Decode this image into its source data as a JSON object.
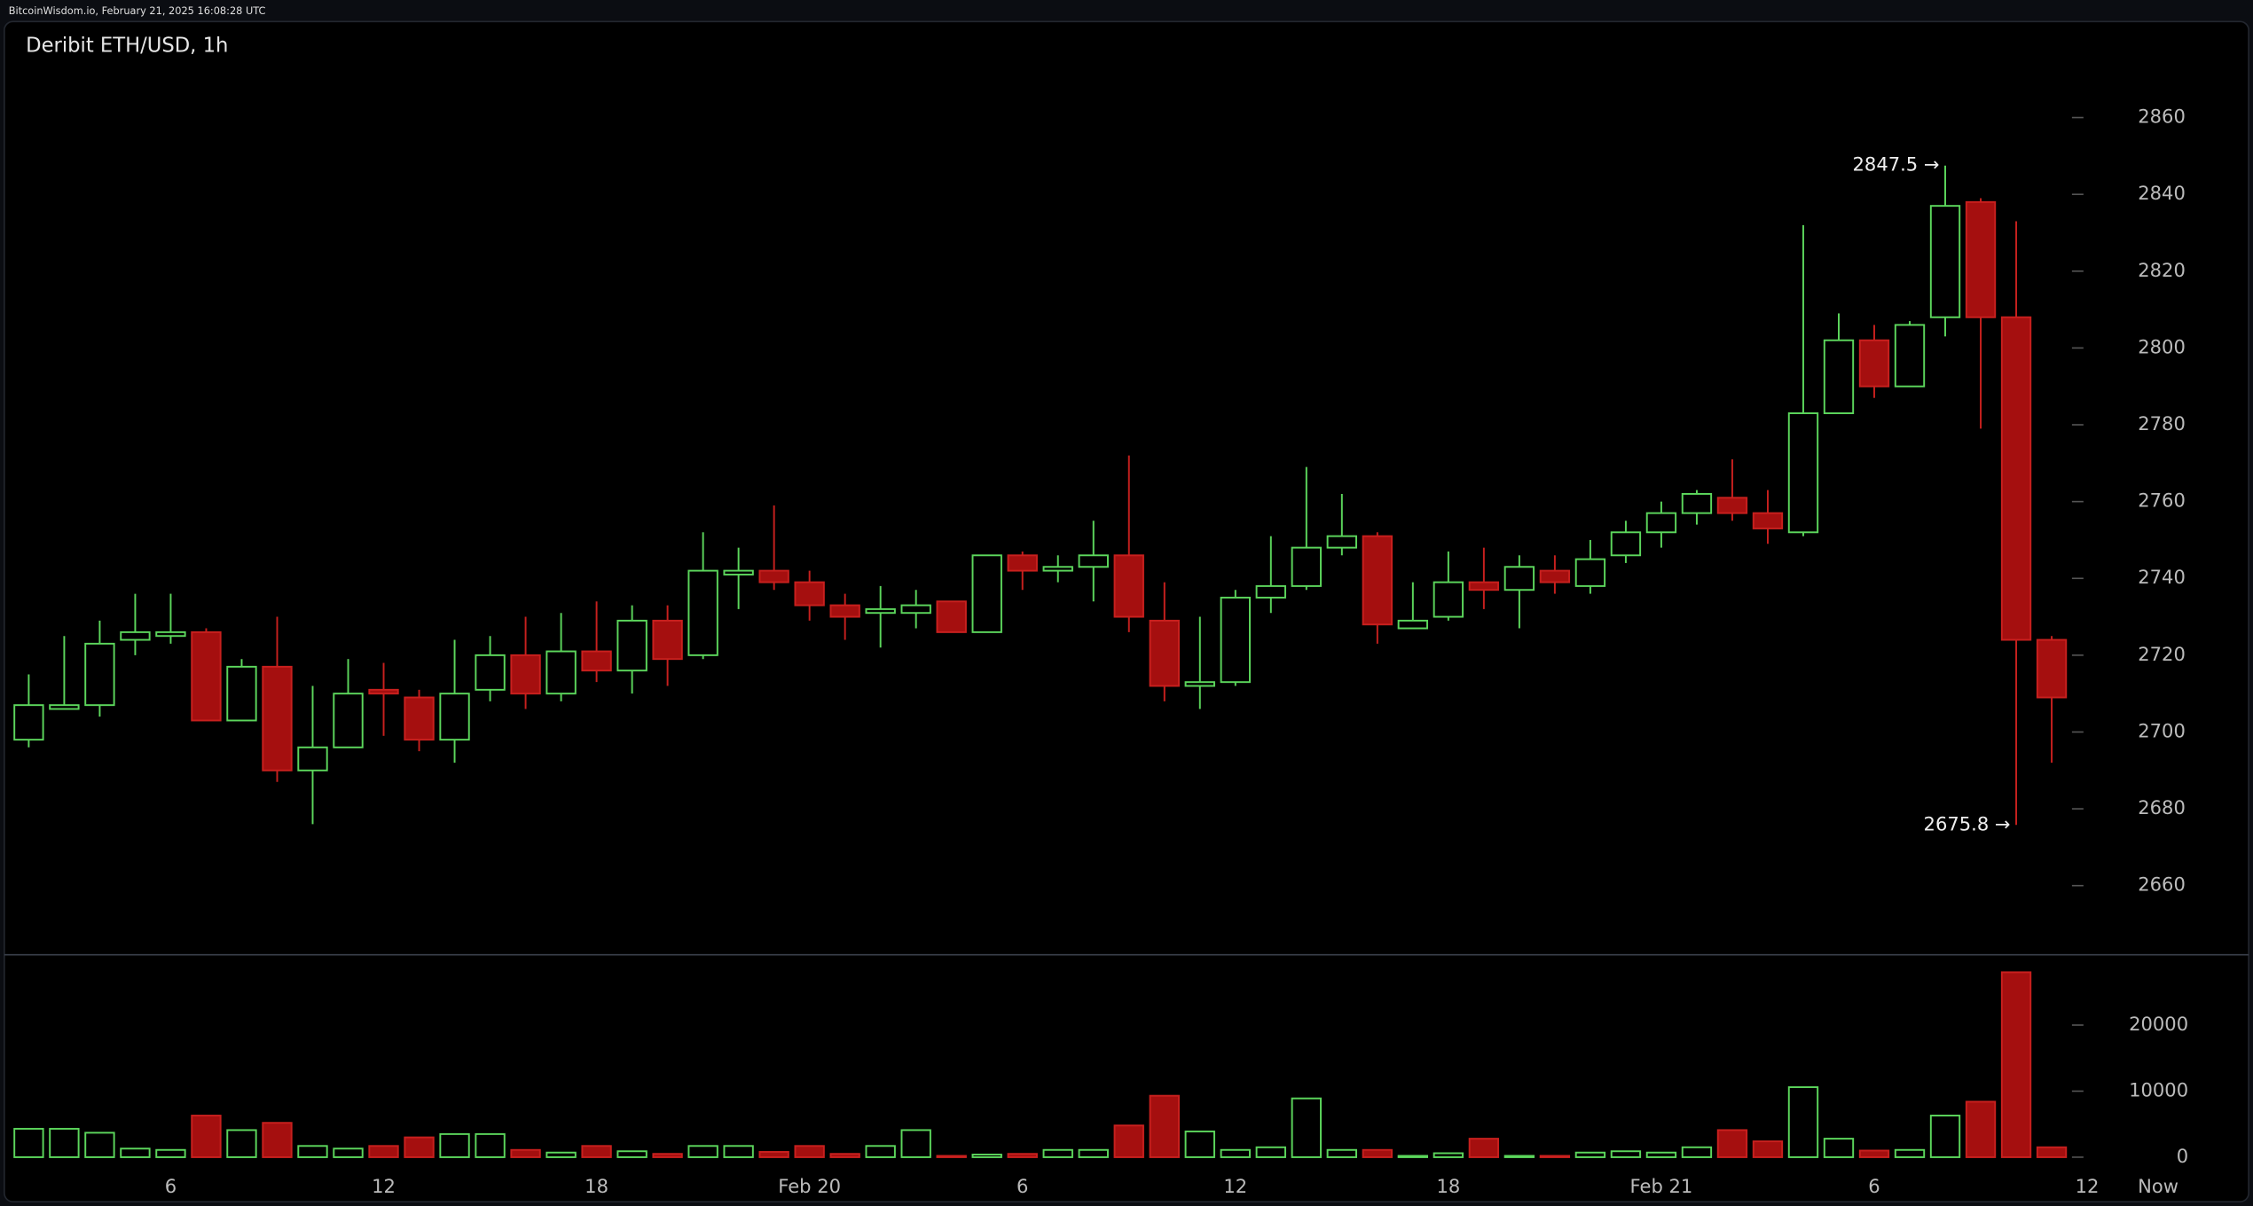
{
  "header": "BitcoinWisdom.io, February 21, 2025 16:08:28 UTC",
  "chart_data": {
    "type": "candlestick",
    "title": "Deribit ETH/USD, 1h",
    "categories": [
      null,
      null,
      null,
      null,
      "6",
      null,
      null,
      null,
      null,
      null,
      "12",
      null,
      null,
      null,
      null,
      null,
      "18",
      null,
      null,
      null,
      null,
      null,
      "Feb 20",
      null,
      null,
      null,
      null,
      null,
      "6",
      null,
      null,
      null,
      null,
      null,
      "12",
      null,
      null,
      null,
      null,
      null,
      "18",
      null,
      null,
      null,
      null,
      null,
      "Feb 21",
      null,
      null,
      null,
      null,
      null,
      "6",
      null,
      null,
      null,
      null,
      null,
      "12",
      null,
      "Now"
    ],
    "open": [
      2698,
      2706,
      2707,
      2724,
      2725,
      2726,
      2703,
      2717,
      2690,
      2696,
      2711,
      2709,
      2698,
      2711,
      2720,
      2710,
      2721,
      2716,
      2729,
      2720,
      2741,
      2742,
      2739,
      2733,
      2731,
      2731,
      2734,
      2726,
      2746,
      2742,
      2743,
      2746,
      2729,
      2712,
      2713,
      2735,
      2738,
      2748,
      2751,
      2727,
      2730,
      2739,
      2737,
      2742,
      2738,
      2746,
      2752,
      2757,
      2761,
      2757,
      2752,
      2783,
      2802,
      2790,
      2808,
      2838,
      2808,
      2724,
      null,
      null,
      null
    ],
    "high": [
      2715,
      2725,
      2729,
      2736,
      2736,
      2727,
      2719,
      2730,
      2712,
      2719,
      2718,
      2711,
      2724,
      2725,
      2730,
      2731,
      2734,
      2733,
      2733,
      2752,
      2748,
      2759,
      2742,
      2736,
      2738,
      2737,
      2734,
      2746,
      2747,
      2746,
      2755,
      2772,
      2739,
      2730,
      2737,
      2751,
      2769,
      2762,
      2752,
      2739,
      2747,
      2748,
      2746,
      2746,
      2750,
      2755,
      2760,
      2763,
      2771,
      2763,
      2832,
      2809,
      2806,
      2807,
      2847.5,
      2839,
      2833,
      2725,
      null,
      null,
      null
    ],
    "low": [
      2696,
      2706,
      2704,
      2720,
      2723,
      2703,
      2703,
      2687,
      2676,
      2696,
      2699,
      2695,
      2692,
      2708,
      2706,
      2708,
      2713,
      2710,
      2712,
      2719,
      2732,
      2737,
      2729,
      2724,
      2722,
      2727,
      2726,
      2726,
      2737,
      2739,
      2734,
      2726,
      2708,
      2706,
      2712,
      2731,
      2737,
      2746,
      2723,
      2727,
      2729,
      2732,
      2727,
      2736,
      2736,
      2744,
      2748,
      2754,
      2755,
      2749,
      2751,
      2783,
      2787,
      2790,
      2803,
      2779,
      2675.8,
      2692,
      null,
      null,
      null
    ],
    "close": [
      2707,
      2707,
      2723,
      2726,
      2726,
      2703,
      2717,
      2690,
      2696,
      2710,
      2710,
      2698,
      2710,
      2720,
      2710,
      2721,
      2716,
      2729,
      2719,
      2742,
      2742,
      2739,
      2733,
      2730,
      2732,
      2733,
      2726,
      2746,
      2742,
      2743,
      2746,
      2730,
      2712,
      2713,
      2735,
      2738,
      2748,
      2751,
      2728,
      2729,
      2739,
      2737,
      2743,
      2739,
      2745,
      2752,
      2757,
      2762,
      2757,
      2753,
      2783,
      2802,
      2790,
      2806,
      2837,
      2808,
      2724,
      2709,
      null,
      null,
      null
    ],
    "volume": [
      4300,
      4300,
      3700,
      1300,
      1100,
      6300,
      4100,
      5200,
      1700,
      1300,
      1700,
      3000,
      3500,
      3500,
      1100,
      700,
      1700,
      900,
      500,
      1700,
      1700,
      800,
      1700,
      500,
      1700,
      4100,
      200,
      400,
      500,
      1100,
      1100,
      4800,
      9300,
      3900,
      1100,
      1500,
      8900,
      1100,
      1100,
      200,
      600,
      2800,
      200,
      200,
      700,
      900,
      700,
      1500,
      4100,
      2400,
      10600,
      2800,
      1000,
      1100,
      6300,
      8400,
      28000,
      1500,
      null,
      null,
      null
    ],
    "up_color": "#5cd65c",
    "down_color": "#a50f0f",
    "ylim": [
      2642,
      2885
    ],
    "yticks": [
      2660,
      2680,
      2700,
      2720,
      2740,
      2760,
      2780,
      2800,
      2820,
      2840,
      2860
    ],
    "volume_ylim": [
      0,
      30650
    ],
    "volume_yticks": [
      0,
      10000,
      20000
    ],
    "annotations": [
      "2847.5 →",
      "2675.8 →"
    ]
  }
}
